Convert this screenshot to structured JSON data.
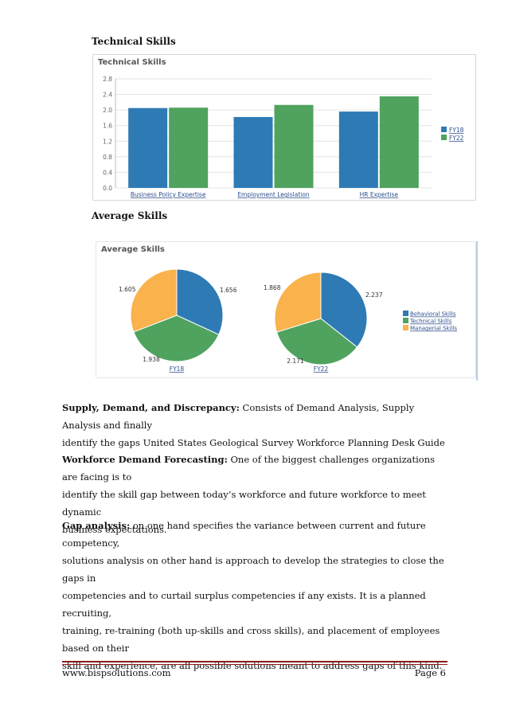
{
  "section1_heading": "Technical Skills",
  "section2_heading": "Average Skills",
  "technical_chart": {
    "title": "Technical Skills",
    "colors": {
      "FY18": "#2e7ab5",
      "FY22": "#4fa35f"
    }
  },
  "average_chart": {
    "title": "Average Skills",
    "colors": {
      "Behavioral Skills": "#2e7ab5",
      "Technical Skills": "#4fa35f",
      "Managerial Skills": "#f9b24c"
    }
  },
  "chart_data": [
    {
      "type": "bar",
      "title": "Technical Skills",
      "categories": [
        "Business Policy Expertise",
        "Employment Legislation",
        "HR Expertise"
      ],
      "series": [
        {
          "name": "FY18",
          "values": [
            2.05,
            1.82,
            1.96
          ]
        },
        {
          "name": "FY22",
          "values": [
            2.06,
            2.13,
            2.35
          ]
        }
      ],
      "yticks": [
        "0.0",
        "0.4",
        "0.8",
        "1.2",
        "1.6",
        "2.0",
        "2.4",
        "2.8"
      ],
      "ylim": [
        0,
        2.8
      ],
      "grid": true,
      "legend": "right"
    },
    {
      "type": "pie",
      "title": "Average Skills",
      "categories": [
        "Behavioral Skills",
        "Technical Skills",
        "Managerial Skills"
      ],
      "series": [
        {
          "name": "FY18",
          "values": [
            1.656,
            1.938,
            1.605
          ],
          "labels": [
            "1.656",
            "1.938",
            "1.605"
          ]
        },
        {
          "name": "FY22",
          "values": [
            2.237,
            2.171,
            1.868
          ],
          "labels": [
            "2.237",
            "2.171",
            "1.868"
          ]
        }
      ],
      "legend": "right"
    }
  ],
  "paragraphs": {
    "p1_label": "Supply, Demand, and Discrepancy:",
    "p1_line1": " Consists of Demand Analysis, Supply Analysis and finally",
    "p1_line2": "identify the gaps United States Geological Survey Workforce Planning Desk Guide",
    "p2_label": "Workforce Demand Forecasting:",
    "p2_line1": " One of the biggest challenges organizations are facing is to",
    "p2_line2": "identify the skill gap between today’s workforce and future workforce to meet dynamic",
    "p2_line3": "business expectations.",
    "p3_label": "Gap analysis:",
    "p3_line1": "  on one hand specifies the variance between current and future competency,",
    "p3_line2": "solutions analysis on other hand is approach to develop the strategies to close the gaps in",
    "p3_line3": "competencies and to curtail surplus competencies if any exists. It is a planned recruiting,",
    "p3_line4": "training, re-training (both up-skills and cross skills), and placement of employees based on their",
    "p3_line5": "skill and experience, are all possible solutions meant to address gaps of this kind."
  },
  "footer": {
    "url": "www.bispsolutions.com",
    "page": "Page 6"
  }
}
